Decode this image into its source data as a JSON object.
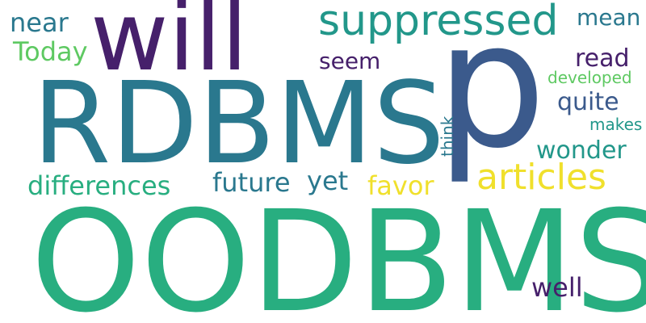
{
  "palette": {
    "background": "#ffffff",
    "purple": "#46206b",
    "blue": "#3b5a8c",
    "teal": "#2a788e",
    "teal_green": "#22978a",
    "green": "#28ae80",
    "light_green": "#5ec962",
    "yellow": "#f0e02c"
  },
  "words": [
    {
      "id": "oodbms",
      "text": "OODBMS",
      "color": "#28ae80"
    },
    {
      "id": "rdbms",
      "text": "RDBMS",
      "color": "#2a788e"
    },
    {
      "id": "p",
      "text": "p",
      "color": "#3b5a8c"
    },
    {
      "id": "will",
      "text": "will",
      "color": "#46206b"
    },
    {
      "id": "suppressed",
      "text": "suppressed",
      "color": "#22978a"
    },
    {
      "id": "articles",
      "text": "articles",
      "color": "#f0e02c"
    },
    {
      "id": "near",
      "text": "near",
      "color": "#2a788e"
    },
    {
      "id": "today",
      "text": "Today",
      "color": "#5ec962"
    },
    {
      "id": "mean",
      "text": "mean",
      "color": "#2a788e"
    },
    {
      "id": "read",
      "text": "read",
      "color": "#46206b"
    },
    {
      "id": "seem",
      "text": "seem",
      "color": "#46206b"
    },
    {
      "id": "developed",
      "text": "developed",
      "color": "#5ec962"
    },
    {
      "id": "quite",
      "text": "quite",
      "color": "#3b5a8c"
    },
    {
      "id": "makes",
      "text": "makes",
      "color": "#22978a"
    },
    {
      "id": "think",
      "text": "think",
      "color": "#2a788e"
    },
    {
      "id": "wonder",
      "text": "wonder",
      "color": "#22978a"
    },
    {
      "id": "differences",
      "text": "differences",
      "color": "#28ae80"
    },
    {
      "id": "future",
      "text": "future",
      "color": "#2a788e"
    },
    {
      "id": "yet",
      "text": "yet",
      "color": "#2a788e"
    },
    {
      "id": "favor",
      "text": "favor",
      "color": "#f0e02c"
    },
    {
      "id": "well",
      "text": "well",
      "color": "#46206b"
    }
  ]
}
